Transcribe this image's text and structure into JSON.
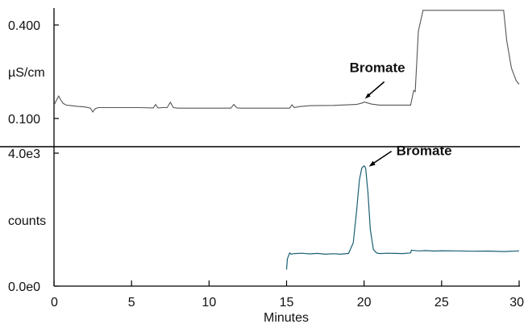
{
  "chart_data": [
    {
      "type": "line",
      "panel": "top",
      "ylabel": "µS/cm",
      "y_tick_labels": [
        "0.400",
        "0.100"
      ],
      "y_ticks": [
        0.4,
        0.1
      ],
      "ylim": [
        0.065,
        0.465
      ],
      "xlim": [
        0,
        30
      ],
      "annotation": {
        "text": "Bromate",
        "x": 20.0,
        "y": 0.153
      },
      "color": "#555555",
      "series": [
        {
          "x": [
            0,
            0.1,
            0.3,
            0.45,
            0.6,
            0.8,
            1.0,
            1.5,
            2.0,
            2.35,
            2.5,
            2.65,
            2.85,
            3.5,
            4.5,
            5.5,
            6.4,
            6.55,
            6.7,
            7.0,
            7.3,
            7.5,
            7.7,
            8.0,
            9.0,
            10.0,
            11.0,
            11.4,
            11.6,
            11.8,
            12.0,
            13.0,
            14.0,
            15.0,
            15.2,
            15.35,
            15.5,
            15.8,
            16.5,
            18.0,
            19.5,
            19.9,
            20.0,
            20.15,
            20.5,
            21.0,
            22.0,
            23.0,
            23.2,
            23.3,
            23.5,
            23.8,
            24.0,
            29.0,
            29.2,
            29.5,
            29.8,
            30.0
          ],
          "y": [
            0.142,
            0.153,
            0.172,
            0.158,
            0.148,
            0.143,
            0.142,
            0.139,
            0.137,
            0.133,
            0.121,
            0.131,
            0.135,
            0.135,
            0.135,
            0.135,
            0.134,
            0.145,
            0.134,
            0.135,
            0.135,
            0.152,
            0.135,
            0.133,
            0.133,
            0.133,
            0.133,
            0.133,
            0.145,
            0.134,
            0.133,
            0.133,
            0.133,
            0.133,
            0.133,
            0.144,
            0.135,
            0.138,
            0.141,
            0.142,
            0.145,
            0.15,
            0.153,
            0.151,
            0.146,
            0.143,
            0.143,
            0.143,
            0.19,
            0.186,
            0.38,
            0.447,
            0.447,
            0.447,
            0.35,
            0.262,
            0.222,
            0.21
          ]
        }
      ]
    },
    {
      "type": "line",
      "panel": "bottom",
      "ylabel": "counts",
      "y_tick_labels": [
        "4.0e3",
        "0.0e0"
      ],
      "y_ticks": [
        4000,
        0
      ],
      "ylim": [
        0,
        4000
      ],
      "xlim": [
        0,
        30
      ],
      "xlabel": "Minutes",
      "x_ticks": [
        0,
        5,
        10,
        15,
        20,
        25,
        30
      ],
      "x_tick_labels": [
        "0",
        "5",
        "10",
        "15",
        "20",
        "25",
        "30"
      ],
      "annotation": {
        "text": "Bromate",
        "x": 20.0,
        "y": 3620
      },
      "color": "#1a5f73",
      "series": [
        {
          "x": [
            15.0,
            15.05,
            15.2,
            15.3,
            15.5,
            16.0,
            16.5,
            17.0,
            17.5,
            18.0,
            18.5,
            19.0,
            19.3,
            19.5,
            19.7,
            19.85,
            20.0,
            20.1,
            20.25,
            20.4,
            20.6,
            20.8,
            21.0,
            21.5,
            22.0,
            22.5,
            23.0,
            23.05,
            23.2,
            23.5,
            24.0,
            24.5,
            25.0,
            26.0,
            27.0,
            28.0,
            29.0,
            30.0
          ],
          "y": [
            500,
            820,
            1000,
            960,
            980,
            990,
            970,
            985,
            960,
            975,
            960,
            985,
            1300,
            2200,
            3200,
            3550,
            3620,
            3550,
            2800,
            1700,
            1100,
            1000,
            980,
            990,
            985,
            980,
            1000,
            1080,
            1075,
            1060,
            1070,
            1055,
            1065,
            1060,
            1050,
            1055,
            1040,
            1060
          ]
        }
      ]
    }
  ]
}
